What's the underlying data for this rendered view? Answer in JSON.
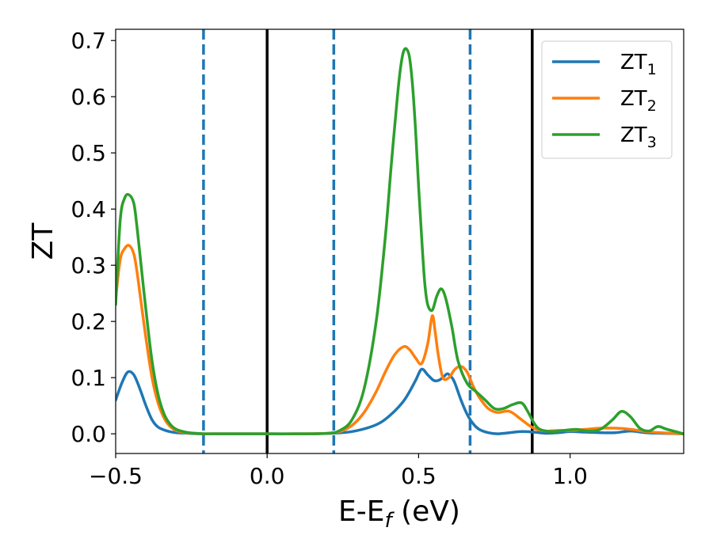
{
  "chart_data": {
    "type": "line",
    "title": "",
    "xlabel": {
      "main": "E-E",
      "sub": "f",
      "suffix": " (eV)"
    },
    "ylabel": "ZT",
    "xlim": [
      -0.5,
      1.375
    ],
    "ylim": [
      -0.035,
      0.72
    ],
    "x_ticks": [
      {
        "value": -0.5,
        "label": "−0.5"
      },
      {
        "value": 0.0,
        "label": "0.0"
      },
      {
        "value": 0.5,
        "label": "0.5"
      },
      {
        "value": 1.0,
        "label": "1.0"
      }
    ],
    "y_ticks": [
      {
        "value": 0.0,
        "label": "0.0"
      },
      {
        "value": 0.1,
        "label": "0.1"
      },
      {
        "value": 0.2,
        "label": "0.2"
      },
      {
        "value": 0.3,
        "label": "0.3"
      },
      {
        "value": 0.4,
        "label": "0.4"
      },
      {
        "value": 0.5,
        "label": "0.5"
      },
      {
        "value": 0.6,
        "label": "0.6"
      },
      {
        "value": 0.7,
        "label": "0.7"
      }
    ],
    "grid": false,
    "legend_position": "top-right",
    "vlines": [
      {
        "x": -0.21,
        "style": "dashed",
        "color": "#1f77b4"
      },
      {
        "x": 0.0,
        "style": "solid",
        "color": "#000000"
      },
      {
        "x": 0.22,
        "style": "dashed",
        "color": "#1f77b4"
      },
      {
        "x": 0.67,
        "style": "dashed",
        "color": "#1f77b4"
      },
      {
        "x": 0.875,
        "style": "solid",
        "color": "#000000"
      }
    ],
    "series": [
      {
        "name": "ZT",
        "sub": "1",
        "color": "#1f77b4",
        "x": [
          -0.5,
          -0.48,
          -0.46,
          -0.44,
          -0.42,
          -0.4,
          -0.38,
          -0.36,
          -0.33,
          -0.3,
          -0.26,
          -0.22,
          -0.15,
          -0.05,
          0.05,
          0.15,
          0.22,
          0.28,
          0.34,
          0.38,
          0.42,
          0.45,
          0.47,
          0.49,
          0.51,
          0.53,
          0.55,
          0.565,
          0.58,
          0.595,
          0.61,
          0.62,
          0.64,
          0.66,
          0.68,
          0.7,
          0.73,
          0.76,
          0.8,
          0.84,
          0.88,
          0.92,
          0.96,
          1.0,
          1.05,
          1.1,
          1.15,
          1.2,
          1.25,
          1.3,
          1.375
        ],
        "y": [
          0.06,
          0.09,
          0.11,
          0.105,
          0.08,
          0.05,
          0.025,
          0.012,
          0.005,
          0.002,
          0.001,
          0.0,
          0.0,
          0.0,
          0.0,
          0.0,
          0.001,
          0.004,
          0.012,
          0.022,
          0.04,
          0.058,
          0.075,
          0.095,
          0.115,
          0.105,
          0.095,
          0.095,
          0.1,
          0.107,
          0.1,
          0.09,
          0.06,
          0.035,
          0.018,
          0.008,
          0.002,
          0.0,
          0.002,
          0.004,
          0.003,
          0.001,
          0.002,
          0.004,
          0.003,
          0.002,
          0.002,
          0.005,
          0.002,
          0.001,
          0.0
        ]
      },
      {
        "name": "ZT",
        "sub": "2",
        "color": "#ff7f0e",
        "x": [
          -0.5,
          -0.485,
          -0.47,
          -0.455,
          -0.44,
          -0.43,
          -0.42,
          -0.4,
          -0.38,
          -0.36,
          -0.34,
          -0.32,
          -0.3,
          -0.27,
          -0.24,
          -0.2,
          -0.1,
          0.0,
          0.1,
          0.2,
          0.24,
          0.28,
          0.32,
          0.36,
          0.39,
          0.42,
          0.45,
          0.47,
          0.49,
          0.51,
          0.53,
          0.545,
          0.555,
          0.565,
          0.58,
          0.6,
          0.62,
          0.64,
          0.66,
          0.68,
          0.7,
          0.73,
          0.76,
          0.8,
          0.84,
          0.88,
          0.92,
          0.96,
          1.0,
          1.05,
          1.1,
          1.15,
          1.2,
          1.25,
          1.3,
          1.375
        ],
        "y": [
          0.24,
          0.31,
          0.33,
          0.335,
          0.32,
          0.29,
          0.25,
          0.17,
          0.1,
          0.055,
          0.028,
          0.013,
          0.006,
          0.002,
          0.001,
          0.0,
          0.0,
          0.0,
          0.0,
          0.001,
          0.004,
          0.015,
          0.038,
          0.075,
          0.11,
          0.14,
          0.155,
          0.15,
          0.135,
          0.125,
          0.16,
          0.21,
          0.18,
          0.14,
          0.1,
          0.1,
          0.115,
          0.12,
          0.11,
          0.085,
          0.065,
          0.045,
          0.038,
          0.04,
          0.025,
          0.01,
          0.005,
          0.006,
          0.006,
          0.008,
          0.01,
          0.01,
          0.008,
          0.004,
          0.002,
          0.0
        ]
      },
      {
        "name": "ZT",
        "sub": "3",
        "color": "#2ca02c",
        "x": [
          -0.5,
          -0.485,
          -0.47,
          -0.455,
          -0.44,
          -0.43,
          -0.42,
          -0.4,
          -0.38,
          -0.36,
          -0.34,
          -0.32,
          -0.3,
          -0.27,
          -0.24,
          -0.2,
          -0.1,
          0.0,
          0.1,
          0.2,
          0.24,
          0.28,
          0.32,
          0.36,
          0.39,
          0.41,
          0.43,
          0.44,
          0.45,
          0.46,
          0.47,
          0.48,
          0.49,
          0.5,
          0.51,
          0.52,
          0.53,
          0.545,
          0.56,
          0.575,
          0.59,
          0.61,
          0.63,
          0.66,
          0.69,
          0.72,
          0.75,
          0.78,
          0.81,
          0.84,
          0.86,
          0.88,
          0.9,
          0.94,
          0.98,
          1.02,
          1.06,
          1.1,
          1.14,
          1.17,
          1.2,
          1.23,
          1.26,
          1.29,
          1.32,
          1.375
        ],
        "y": [
          0.23,
          0.38,
          0.42,
          0.425,
          0.41,
          0.37,
          0.32,
          0.22,
          0.13,
          0.07,
          0.035,
          0.017,
          0.008,
          0.003,
          0.001,
          0.0,
          0.0,
          0.0,
          0.0,
          0.001,
          0.006,
          0.025,
          0.08,
          0.2,
          0.35,
          0.48,
          0.6,
          0.65,
          0.68,
          0.685,
          0.67,
          0.62,
          0.54,
          0.44,
          0.35,
          0.27,
          0.23,
          0.22,
          0.245,
          0.258,
          0.24,
          0.19,
          0.13,
          0.09,
          0.075,
          0.06,
          0.045,
          0.045,
          0.052,
          0.055,
          0.04,
          0.02,
          0.008,
          0.004,
          0.006,
          0.008,
          0.005,
          0.008,
          0.025,
          0.04,
          0.03,
          0.01,
          0.005,
          0.013,
          0.008,
          0.0
        ]
      }
    ]
  }
}
